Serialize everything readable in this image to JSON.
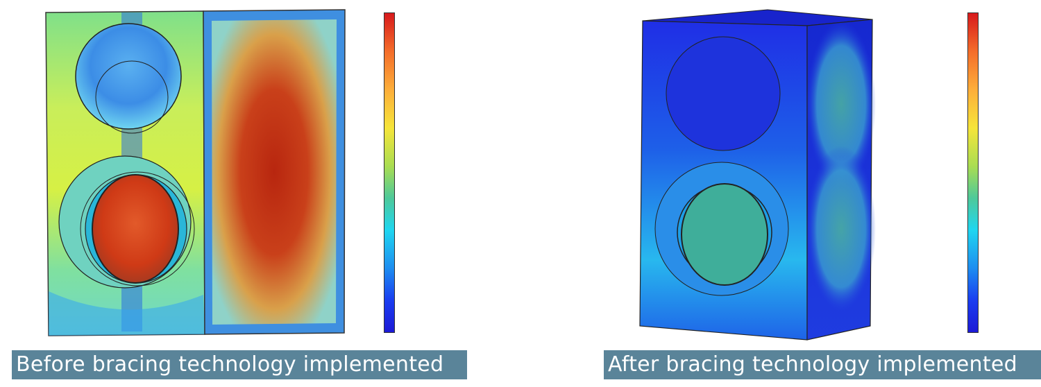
{
  "panels": [
    {
      "caption": "Before bracing technology implemented",
      "colorbar": {
        "top_color": "#d7191c",
        "bottom_color": "#1c1ad6"
      }
    },
    {
      "caption": "After bracing technology implemented",
      "colorbar": {
        "top_color": "#d7191c",
        "bottom_color": "#1c1ad6"
      }
    }
  ]
}
